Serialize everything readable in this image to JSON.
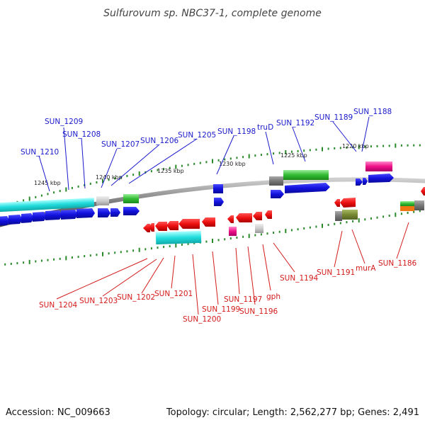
{
  "title": "Sulfurovum sp. NBC37-1, complete genome",
  "footer": {
    "accession": "Accession: NC_009663",
    "summary": "Topology: circular; Length: 2,562,277 bp; Genes: 2,491"
  },
  "colors": {
    "blue_label": "#1a1acc",
    "red_label": "#d41a1a",
    "backbone": "#777777",
    "tick": "#2a8a2a",
    "forward_gene": "#1111dd",
    "reverse_gene": "#ee1111",
    "cyan": "#22dddd",
    "green": "#33bb33",
    "magenta": "#ee1188",
    "gray": "#777777",
    "olive": "#778833"
  },
  "scale_labels": [
    {
      "name": "kbp-1245",
      "text": "1245 kbp"
    },
    {
      "name": "kbp-1240",
      "text": "1240 kbp"
    },
    {
      "name": "kbp-1235",
      "text": "1235 kbp"
    },
    {
      "name": "kbp-1230",
      "text": "1230 kbp"
    },
    {
      "name": "kbp-1225",
      "text": "1225 kbp"
    },
    {
      "name": "kbp-1220",
      "text": "1220 kbp"
    }
  ],
  "forward_labels": [
    {
      "name": "SUN_1210",
      "text": "SUN_1210"
    },
    {
      "name": "SUN_1209",
      "text": "SUN_1209"
    },
    {
      "name": "SUN_1208",
      "text": "SUN_1208"
    },
    {
      "name": "SUN_1207",
      "text": "SUN_1207"
    },
    {
      "name": "SUN_1206",
      "text": "SUN_1206"
    },
    {
      "name": "SUN_1205",
      "text": "SUN_1205"
    },
    {
      "name": "SUN_1198",
      "text": "SUN_1198"
    },
    {
      "name": "truD",
      "text": "truD"
    },
    {
      "name": "SUN_1192",
      "text": "SUN_1192"
    },
    {
      "name": "SUN_1189",
      "text": "SUN_1189"
    },
    {
      "name": "SUN_1188",
      "text": "SUN_1188"
    }
  ],
  "reverse_labels": [
    {
      "name": "SUN_1204",
      "text": "SUN_1204"
    },
    {
      "name": "SUN_1203",
      "text": "SUN_1203"
    },
    {
      "name": "SUN_1202",
      "text": "SUN_1202"
    },
    {
      "name": "SUN_1201",
      "text": "SUN_1201"
    },
    {
      "name": "SUN_1199",
      "text": "SUN_1199"
    },
    {
      "name": "SUN_1200",
      "text": "SUN_1200"
    },
    {
      "name": "SUN_1197",
      "text": "SUN_1197"
    },
    {
      "name": "SUN_1196",
      "text": "SUN_1196"
    },
    {
      "name": "gph",
      "text": "gph"
    },
    {
      "name": "SUN_1194",
      "text": "SUN_1194"
    },
    {
      "name": "SUN_1191",
      "text": "SUN_1191"
    },
    {
      "name": "murA",
      "text": "murA"
    },
    {
      "name": "SUN_1186",
      "text": "SUN_1186"
    }
  ]
}
